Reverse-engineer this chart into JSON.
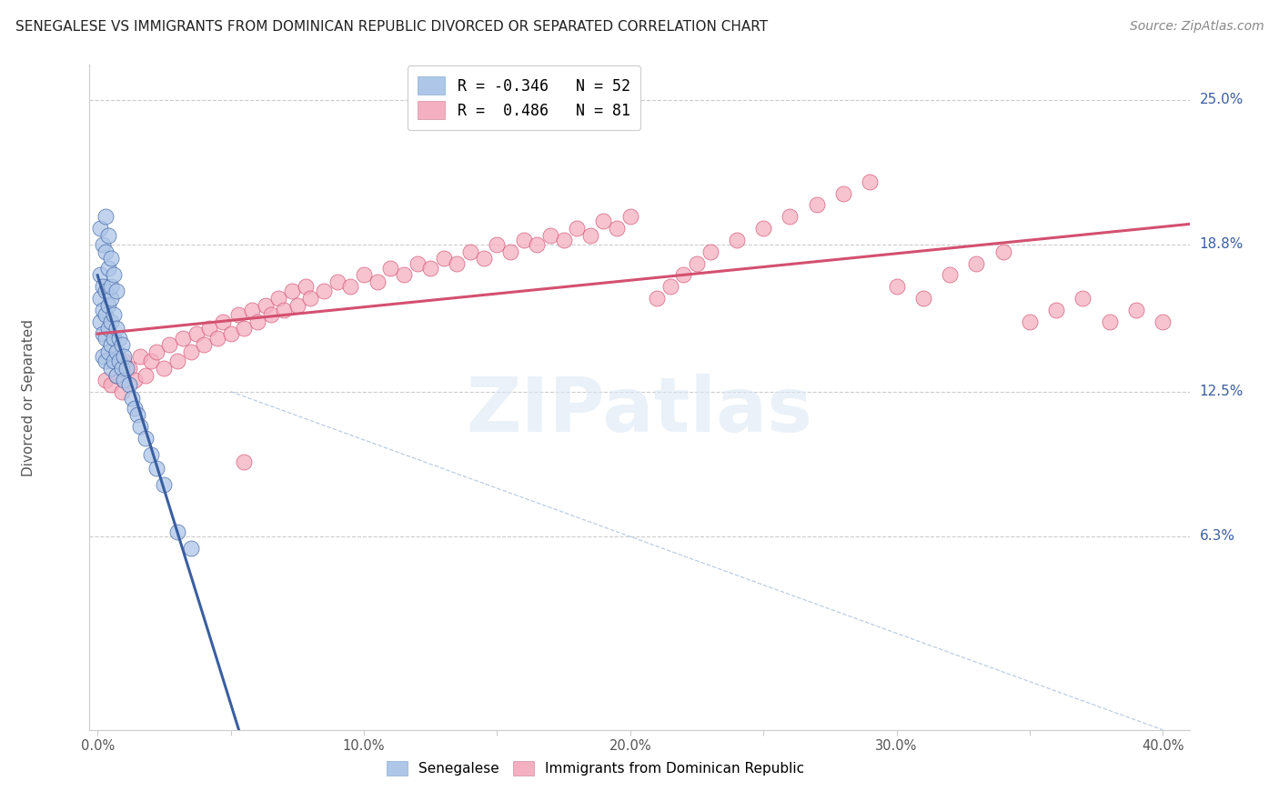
{
  "title": "SENEGALESE VS IMMIGRANTS FROM DOMINICAN REPUBLIC DIVORCED OR SEPARATED CORRELATION CHART",
  "source": "Source: ZipAtlas.com",
  "ylabel": "Divorced or Separated",
  "xlim": [
    0.0,
    0.4
  ],
  "ylim": [
    0.0,
    0.25
  ],
  "xtick_labels": [
    "0.0%",
    "",
    "10.0%",
    "",
    "20.0%",
    "",
    "30.0%",
    "",
    "40.0%"
  ],
  "xtick_values": [
    0.0,
    0.05,
    0.1,
    0.15,
    0.2,
    0.25,
    0.3,
    0.35,
    0.4
  ],
  "ytick_labels": [
    "6.3%",
    "12.5%",
    "18.8%",
    "25.0%"
  ],
  "ytick_values": [
    0.063,
    0.125,
    0.188,
    0.25
  ],
  "legend_label1": "R = -0.346   N = 52",
  "legend_label2": "R =  0.486   N = 81",
  "legend_label1_short": "Senegalese",
  "legend_label2_short": "Immigrants from Dominican Republic",
  "color_blue": "#aec6e8",
  "color_pink": "#f4afc0",
  "line_blue": "#3a5fa0",
  "line_pink": "#d45070",
  "line_dashed_color": "#9ab0d0",
  "background": "#ffffff",
  "senegalese_x": [
    0.001,
    0.001,
    0.001,
    0.002,
    0.002,
    0.002,
    0.002,
    0.003,
    0.003,
    0.003,
    0.003,
    0.004,
    0.004,
    0.004,
    0.005,
    0.005,
    0.005,
    0.005,
    0.006,
    0.006,
    0.006,
    0.007,
    0.007,
    0.007,
    0.008,
    0.008,
    0.009,
    0.009,
    0.01,
    0.01,
    0.011,
    0.012,
    0.013,
    0.014,
    0.015,
    0.016,
    0.018,
    0.02,
    0.022,
    0.025,
    0.001,
    0.002,
    0.003,
    0.003,
    0.004,
    0.004,
    0.005,
    0.005,
    0.006,
    0.007,
    0.03,
    0.035
  ],
  "senegalese_y": [
    0.175,
    0.165,
    0.155,
    0.17,
    0.16,
    0.15,
    0.14,
    0.168,
    0.158,
    0.148,
    0.138,
    0.162,
    0.152,
    0.142,
    0.165,
    0.155,
    0.145,
    0.135,
    0.158,
    0.148,
    0.138,
    0.152,
    0.142,
    0.132,
    0.148,
    0.138,
    0.145,
    0.135,
    0.14,
    0.13,
    0.135,
    0.128,
    0.122,
    0.118,
    0.115,
    0.11,
    0.105,
    0.098,
    0.092,
    0.085,
    0.195,
    0.188,
    0.2,
    0.185,
    0.192,
    0.178,
    0.182,
    0.17,
    0.175,
    0.168,
    0.065,
    0.058
  ],
  "dominican_x": [
    0.003,
    0.005,
    0.007,
    0.009,
    0.01,
    0.012,
    0.014,
    0.016,
    0.018,
    0.02,
    0.022,
    0.025,
    0.027,
    0.03,
    0.032,
    0.035,
    0.037,
    0.04,
    0.042,
    0.045,
    0.047,
    0.05,
    0.053,
    0.055,
    0.058,
    0.06,
    0.063,
    0.065,
    0.068,
    0.07,
    0.073,
    0.075,
    0.078,
    0.08,
    0.085,
    0.09,
    0.095,
    0.1,
    0.105,
    0.11,
    0.115,
    0.12,
    0.125,
    0.13,
    0.135,
    0.14,
    0.145,
    0.15,
    0.155,
    0.16,
    0.165,
    0.17,
    0.175,
    0.18,
    0.185,
    0.19,
    0.195,
    0.2,
    0.21,
    0.215,
    0.22,
    0.225,
    0.23,
    0.24,
    0.25,
    0.26,
    0.27,
    0.28,
    0.29,
    0.3,
    0.31,
    0.32,
    0.33,
    0.34,
    0.35,
    0.36,
    0.37,
    0.38,
    0.39,
    0.4,
    0.055
  ],
  "dominican_y": [
    0.13,
    0.128,
    0.132,
    0.125,
    0.138,
    0.135,
    0.13,
    0.14,
    0.132,
    0.138,
    0.142,
    0.135,
    0.145,
    0.138,
    0.148,
    0.142,
    0.15,
    0.145,
    0.152,
    0.148,
    0.155,
    0.15,
    0.158,
    0.152,
    0.16,
    0.155,
    0.162,
    0.158,
    0.165,
    0.16,
    0.168,
    0.162,
    0.17,
    0.165,
    0.168,
    0.172,
    0.17,
    0.175,
    0.172,
    0.178,
    0.175,
    0.18,
    0.178,
    0.182,
    0.18,
    0.185,
    0.182,
    0.188,
    0.185,
    0.19,
    0.188,
    0.192,
    0.19,
    0.195,
    0.192,
    0.198,
    0.195,
    0.2,
    0.165,
    0.17,
    0.175,
    0.18,
    0.185,
    0.19,
    0.195,
    0.2,
    0.205,
    0.21,
    0.215,
    0.17,
    0.165,
    0.175,
    0.18,
    0.185,
    0.155,
    0.16,
    0.165,
    0.155,
    0.16,
    0.155,
    0.095
  ]
}
